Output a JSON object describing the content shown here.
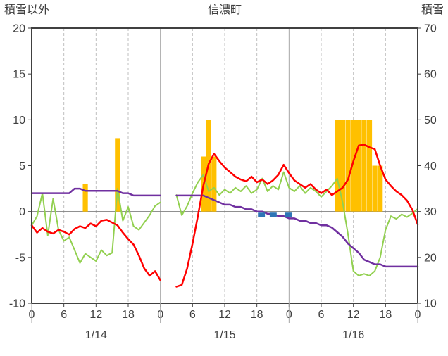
{
  "chart_data": {
    "type": "combo (bar + line, dual axis)",
    "title": "信濃町",
    "left_axis": {
      "label": "積雪以外",
      "min": -10,
      "max": 20,
      "tick_step": 5,
      "ticks": [
        20,
        15,
        10,
        5,
        0,
        -5,
        -10
      ]
    },
    "right_axis": {
      "label": "積雪",
      "min": 10,
      "max": 70,
      "tick_step": 10,
      "ticks": [
        70,
        60,
        50,
        40,
        30,
        20,
        10
      ]
    },
    "x_axis": {
      "hours_total": 72,
      "tick_step": 6,
      "tick_labels": [
        "0",
        "6",
        "12",
        "18",
        "0",
        "6",
        "12",
        "18",
        "0",
        "6",
        "12",
        "18",
        "0"
      ],
      "day_labels": [
        "1/14",
        "1/15",
        "1/16"
      ],
      "grid": "dashed every 6h, solid at day boundaries"
    },
    "colors": {
      "bar": "#FFC000",
      "red": "#FF0000",
      "green": "#92D050",
      "purple": "#7030A0",
      "blue": "#2E75B6",
      "frame": "#404040",
      "grid_dashed": "#BFBFBF",
      "grid_solid": "#A6A6A6",
      "zero_line": "#808080",
      "text": "#404040"
    },
    "series": [
      {
        "name": "orange-bars",
        "type": "bar",
        "axis": "left",
        "color": "#FFC000",
        "points": [
          {
            "hour": 10,
            "value": 3
          },
          {
            "hour": 16,
            "value": 8
          },
          {
            "hour": 32,
            "value": 6
          },
          {
            "hour": 33,
            "value": 10
          },
          {
            "hour": 34,
            "value": 6
          },
          {
            "hour": 57,
            "value": 10
          },
          {
            "hour": 58,
            "value": 10
          },
          {
            "hour": 59,
            "value": 10
          },
          {
            "hour": 60,
            "value": 10
          },
          {
            "hour": 61,
            "value": 10
          },
          {
            "hour": 62,
            "value": 10
          },
          {
            "hour": 63,
            "value": 10
          },
          {
            "hour": 64,
            "value": 5
          },
          {
            "hour": 65,
            "value": 5
          }
        ]
      },
      {
        "name": "green-line",
        "type": "line",
        "axis": "left",
        "color": "#92D050",
        "width": 2,
        "values": [
          -1.5,
          -0.5,
          2.0,
          -2.6,
          1.4,
          -2.0,
          -3.2,
          -2.8,
          -4.2,
          -5.6,
          -4.6,
          -5.0,
          -5.4,
          -4.2,
          -4.8,
          -4.5,
          2.5,
          -1.0,
          0.5,
          -1.6,
          -2.0,
          -1.2,
          -0.4,
          0.6,
          1.0,
          null,
          null,
          1.8,
          -0.4,
          0.6,
          2.0,
          3.2,
          4.0,
          2.2,
          2.6,
          1.8,
          2.4,
          2.0,
          2.6,
          2.2,
          2.8,
          2.0,
          2.4,
          3.6,
          2.2,
          2.8,
          2.4,
          4.3,
          2.6,
          2.2,
          2.8,
          2.0,
          2.6,
          2.2,
          1.6,
          2.2,
          2.8,
          3.6,
          1.0,
          -2.5,
          -6.5,
          -7.0,
          -6.8,
          -7.0,
          -6.5,
          -5.0,
          -2.0,
          -0.5,
          -0.8,
          -0.3,
          -0.6,
          -0.2,
          0.3
        ]
      },
      {
        "name": "purple-line",
        "type": "line",
        "axis": "right",
        "color": "#7030A0",
        "width": 2.5,
        "values": [
          34,
          34,
          34,
          34,
          34,
          34,
          34,
          34,
          35,
          35,
          34.5,
          34.5,
          34.5,
          34.5,
          34.5,
          34.5,
          34.5,
          34,
          34,
          33.5,
          33.5,
          33.5,
          33.5,
          33.5,
          33.5,
          null,
          null,
          33.5,
          33.5,
          33.5,
          33.5,
          33.5,
          33.5,
          33,
          32.5,
          32,
          31.5,
          31.5,
          31,
          31,
          30.5,
          30.5,
          30,
          30,
          29.5,
          29.5,
          29,
          29,
          28.5,
          28.5,
          28,
          28,
          27.5,
          27.5,
          27,
          27,
          26.5,
          25.5,
          24.5,
          23,
          22,
          21,
          19.5,
          19,
          18.5,
          18.5,
          18,
          18,
          18,
          18,
          18,
          18,
          18
        ]
      },
      {
        "name": "red-line",
        "type": "line",
        "axis": "left",
        "color": "#FF0000",
        "width": 2.5,
        "values": [
          -1.5,
          -2.3,
          -1.8,
          -2.2,
          -2.4,
          -2.0,
          -2.2,
          -2.5,
          -1.9,
          -1.6,
          -1.8,
          -1.3,
          -1.6,
          -1.0,
          -0.9,
          -1.2,
          -1.5,
          -2.3,
          -3.0,
          -3.6,
          -4.8,
          -6.2,
          -7.0,
          -6.5,
          -7.5,
          null,
          null,
          -8.2,
          -8.0,
          -6.2,
          -3.5,
          -0.5,
          2.8,
          5.2,
          6.3,
          5.5,
          4.8,
          4.3,
          3.8,
          3.5,
          3.3,
          3.8,
          3.2,
          3.5,
          3.0,
          3.4,
          4.0,
          5.1,
          4.2,
          3.4,
          3.0,
          2.6,
          3.0,
          2.4,
          2.0,
          2.4,
          1.8,
          2.2,
          2.6,
          3.5,
          5.5,
          7.2,
          7.3,
          7.0,
          6.8,
          5.0,
          3.5,
          2.8,
          2.2,
          1.8,
          1.2,
          0.2,
          -1.4
        ]
      },
      {
        "name": "blue-dash-marks",
        "type": "dash",
        "axis": "left",
        "color": "#2E75B6",
        "value": -0.35,
        "segments": [
          [
            42.2,
            43.5
          ],
          [
            44.4,
            45.7
          ],
          [
            47.2,
            48.5
          ]
        ]
      }
    ]
  }
}
